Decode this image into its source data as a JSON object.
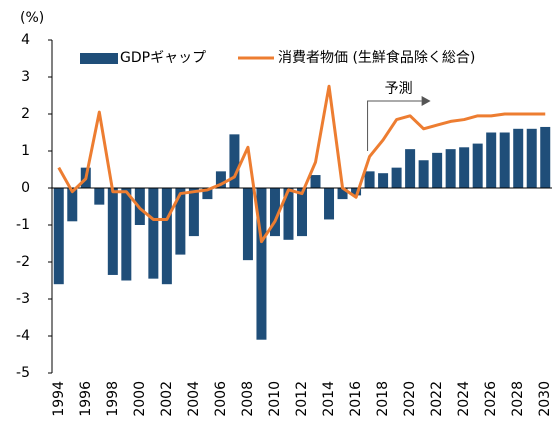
{
  "chart_data": {
    "type": "bar_line",
    "y_axis_label": "(%)",
    "annotation": "予測",
    "categories": [
      "1994",
      null,
      "1996",
      null,
      "1998",
      null,
      "2000",
      null,
      "2002",
      null,
      "2004",
      null,
      "2006",
      null,
      "2008",
      null,
      "2010",
      null,
      "2012",
      null,
      "2014",
      null,
      "2016",
      null,
      "2018",
      null,
      "2020",
      null,
      "2022",
      null,
      "2024",
      null,
      "2026",
      null,
      "2028",
      null,
      "2030"
    ],
    "series": [
      {
        "name": "GDPギャップ",
        "kind": "bar",
        "color": "#1f4e79",
        "values": [
          -2.6,
          -0.9,
          0.55,
          -0.45,
          -2.35,
          -2.5,
          -1.0,
          -2.45,
          -2.6,
          -1.8,
          -1.3,
          -0.3,
          0.45,
          1.45,
          -1.95,
          -4.1,
          -1.3,
          -1.4,
          -1.3,
          0.35,
          -0.85,
          -0.3,
          -0.2,
          0.45,
          0.4,
          0.55,
          1.05,
          0.75,
          0.95,
          1.05,
          1.1,
          1.2,
          1.5,
          1.5,
          1.6,
          1.6,
          1.65
        ]
      },
      {
        "name": "消費者物価 (生鮮食品除く総合)",
        "kind": "line",
        "color": "#ed7d31",
        "values": [
          0.55,
          -0.1,
          0.25,
          2.05,
          -0.1,
          -0.1,
          -0.55,
          -0.85,
          -0.85,
          -0.15,
          -0.1,
          -0.05,
          0.1,
          0.3,
          1.1,
          -1.45,
          -0.9,
          -0.05,
          -0.15,
          0.7,
          2.75,
          0,
          -0.25,
          0.85,
          1.3,
          1.85,
          1.95,
          1.6,
          1.7,
          1.8,
          1.85,
          1.95,
          1.95,
          2.0,
          2.0,
          2.0,
          2.0
        ]
      }
    ],
    "ylim": [
      -5,
      4
    ],
    "yticks": [
      -5,
      -4,
      -3,
      -2,
      -1,
      0,
      1,
      2,
      3,
      4
    ]
  }
}
